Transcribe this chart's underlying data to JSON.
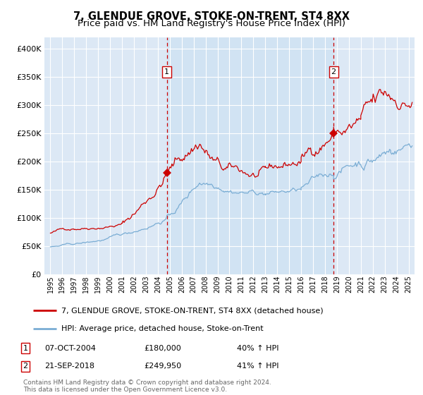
{
  "title": "7, GLENDUE GROVE, STOKE-ON-TRENT, ST4 8XX",
  "subtitle": "Price paid vs. HM Land Registry's House Price Index (HPI)",
  "title_fontsize": 10.5,
  "subtitle_fontsize": 9.5,
  "background_color": "#ffffff",
  "plot_bg_color": "#dce8f5",
  "grid_color": "#ffffff",
  "red_line_color": "#cc0000",
  "blue_line_color": "#7aadd4",
  "marker_color": "#cc0000",
  "dashed_line_color": "#cc0000",
  "purchase1_x": 2004.75,
  "purchase1_y": 180000,
  "purchase2_x": 2018.72,
  "purchase2_y": 249950,
  "ylim": [
    0,
    420000
  ],
  "xlim": [
    1994.5,
    2025.5
  ],
  "yticks": [
    0,
    50000,
    100000,
    150000,
    200000,
    250000,
    300000,
    350000,
    400000
  ],
  "ytick_labels": [
    "£0",
    "£50K",
    "£100K",
    "£150K",
    "£200K",
    "£250K",
    "£300K",
    "£350K",
    "£400K"
  ],
  "xticks": [
    1995,
    1996,
    1997,
    1998,
    1999,
    2000,
    2001,
    2002,
    2003,
    2004,
    2005,
    2006,
    2007,
    2008,
    2009,
    2010,
    2011,
    2012,
    2013,
    2014,
    2015,
    2016,
    2017,
    2018,
    2019,
    2020,
    2021,
    2022,
    2023,
    2024,
    2025
  ],
  "legend_line1": "7, GLENDUE GROVE, STOKE-ON-TRENT, ST4 8XX (detached house)",
  "legend_line2": "HPI: Average price, detached house, Stoke-on-Trent",
  "note1_label": "1",
  "note1_date": "07-OCT-2004",
  "note1_price": "£180,000",
  "note1_hpi": "40% ↑ HPI",
  "note2_label": "2",
  "note2_date": "21-SEP-2018",
  "note2_price": "£249,950",
  "note2_hpi": "41% ↑ HPI",
  "footer": "Contains HM Land Registry data © Crown copyright and database right 2024.\nThis data is licensed under the Open Government Licence v3.0."
}
